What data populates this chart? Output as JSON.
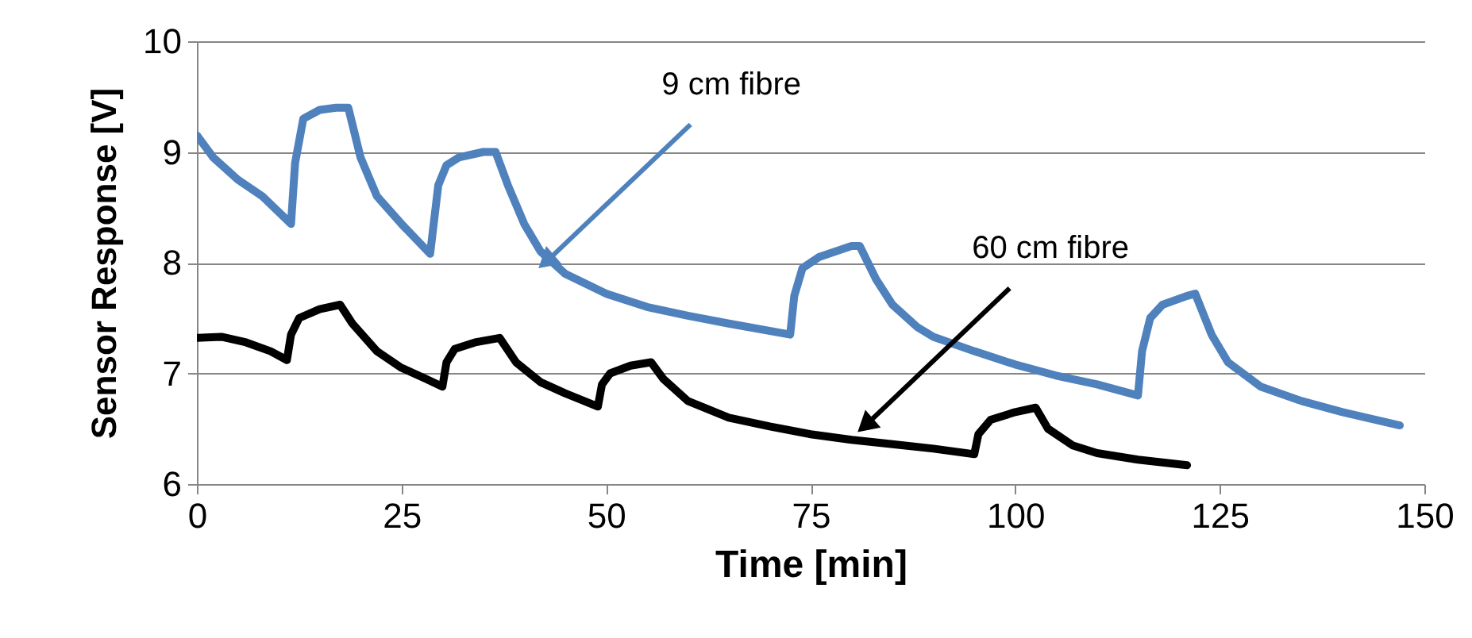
{
  "chart_data": {
    "type": "line",
    "xlabel": "Time [min]",
    "ylabel": "Sensor Response [V]",
    "xlim": [
      0,
      150
    ],
    "xticks": [
      0,
      25,
      50,
      75,
      100,
      125,
      150
    ],
    "ylim": [
      6,
      10
    ],
    "yticks": [
      6,
      7,
      8,
      9,
      10
    ],
    "grid": "y",
    "line_style": "solid",
    "marker": "none",
    "series": [
      {
        "color": "#4f81bd",
        "x": [
          0,
          2,
          5,
          8,
          11.5,
          12,
          13,
          15,
          17,
          18.5,
          20,
          22,
          25,
          28.5,
          29.5,
          30.5,
          32,
          35,
          36.5,
          38,
          40,
          42,
          45,
          50,
          55,
          60,
          65,
          72.5,
          73,
          74,
          76,
          78,
          80,
          81,
          83,
          85,
          88,
          90,
          95,
          100,
          105,
          110,
          115,
          115.5,
          116.5,
          118,
          121,
          122,
          124,
          126,
          130,
          135,
          140,
          147
        ],
        "values": [
          9.15,
          8.95,
          8.75,
          8.6,
          8.35,
          8.9,
          9.3,
          9.38,
          9.4,
          9.4,
          8.95,
          8.6,
          8.35,
          8.08,
          8.7,
          8.88,
          8.95,
          9.0,
          9.0,
          8.7,
          8.35,
          8.1,
          7.9,
          7.72,
          7.6,
          7.52,
          7.45,
          7.35,
          7.7,
          7.95,
          8.05,
          8.1,
          8.15,
          8.15,
          7.85,
          7.62,
          7.42,
          7.33,
          7.2,
          7.08,
          6.98,
          6.9,
          6.8,
          7.2,
          7.5,
          7.62,
          7.7,
          7.72,
          7.35,
          7.1,
          6.88,
          6.75,
          6.65,
          6.53
        ]
      },
      {
        "color": "#000000",
        "x": [
          0,
          3,
          6,
          9,
          11,
          11.5,
          12.5,
          15,
          17.5,
          19,
          22,
          25,
          28,
          30,
          30.5,
          31.5,
          34,
          37,
          39,
          42,
          45,
          49,
          49.5,
          50.5,
          53,
          55.5,
          57,
          60,
          65,
          70,
          75,
          80,
          85,
          90,
          95,
          95.5,
          97,
          100,
          102.5,
          104,
          107,
          110,
          115,
          121
        ],
        "values": [
          7.32,
          7.33,
          7.28,
          7.2,
          7.12,
          7.35,
          7.5,
          7.58,
          7.62,
          7.45,
          7.2,
          7.05,
          6.95,
          6.88,
          7.1,
          7.22,
          7.28,
          7.32,
          7.1,
          6.92,
          6.82,
          6.7,
          6.9,
          7.0,
          7.07,
          7.1,
          6.95,
          6.75,
          6.6,
          6.52,
          6.45,
          6.4,
          6.36,
          6.32,
          6.27,
          6.45,
          6.58,
          6.65,
          6.69,
          6.5,
          6.35,
          6.28,
          6.22,
          6.17
        ]
      }
    ],
    "annotations": [
      {
        "text": "9 cm fibre",
        "x": 43,
        "y": 8.03
      },
      {
        "text": "60 cm fibre",
        "x": 82,
        "y": 6.55
      }
    ]
  }
}
